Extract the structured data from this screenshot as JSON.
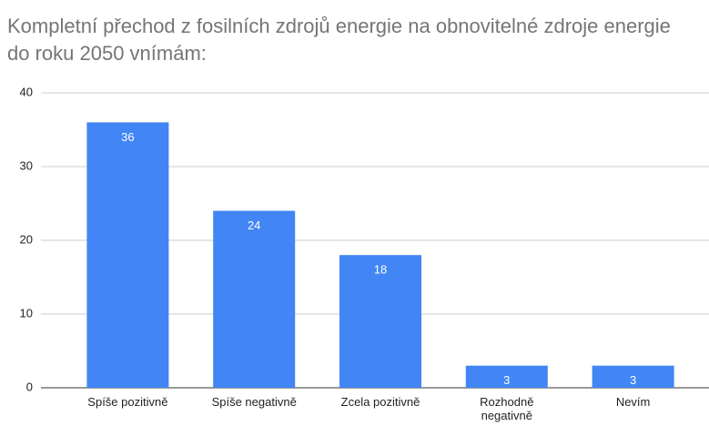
{
  "chart_data": {
    "type": "bar",
    "title": "Kompletní přechod z fosilních zdrojů energie na obnovitelné zdroje energie do roku 2050 vnímám:",
    "categories": [
      "Spíše pozitivně",
      "Spíše negativně",
      "Zcela pozitivně",
      "Rozhodně negativně",
      "Nevím"
    ],
    "values": [
      36,
      24,
      18,
      3,
      3
    ],
    "color": "#4285f4",
    "ylim": [
      0,
      40
    ],
    "yticks": [
      0,
      10,
      20,
      30,
      40
    ],
    "grid": true,
    "data_labels": true
  }
}
